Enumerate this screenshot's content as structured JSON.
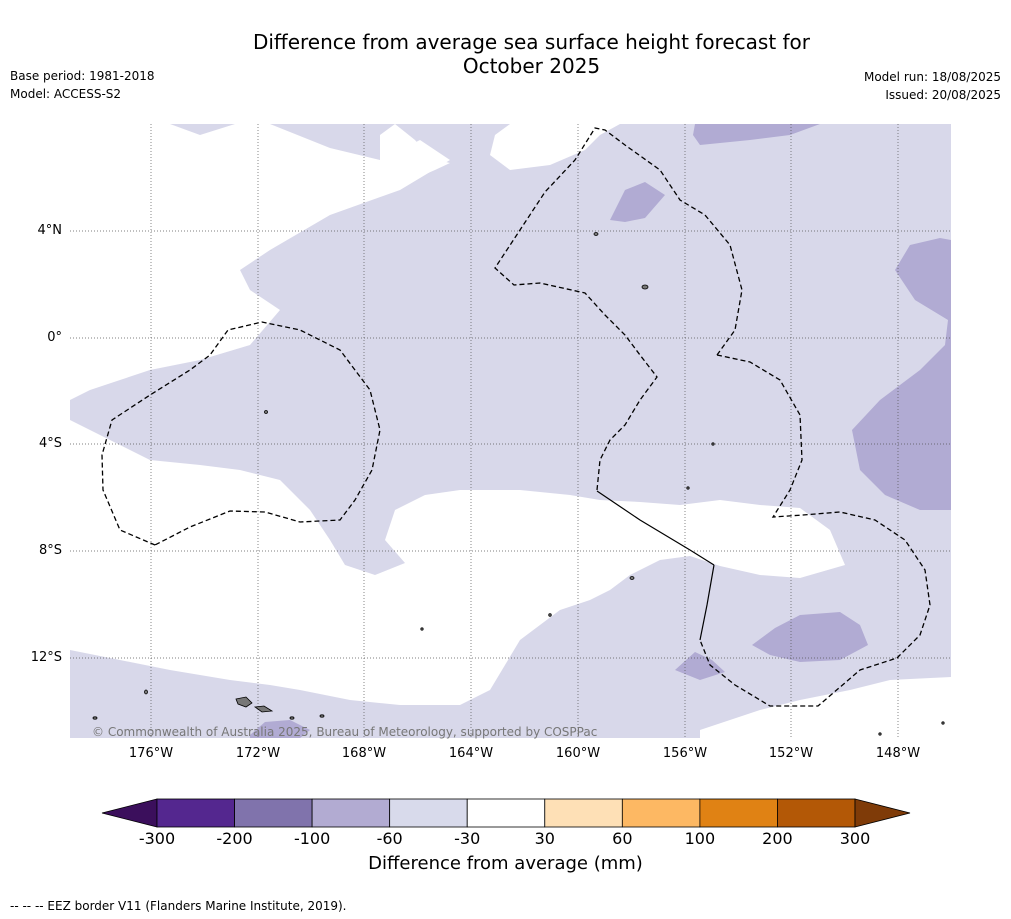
{
  "title": {
    "line1": "Difference from average sea surface height forecast for",
    "line2": "October 2025"
  },
  "meta": {
    "base_period": "Base period: 1981-2018",
    "model": "Model: ACCESS-S2",
    "model_run": "Model run: 18/08/2025",
    "issued": "Issued: 20/08/2025"
  },
  "map": {
    "lat_labels": [
      "4°N",
      "0°",
      "4°S",
      "8°S",
      "12°S"
    ],
    "lon_labels": [
      "176°W",
      "172°W",
      "168°W",
      "164°W",
      "160°W",
      "156°W",
      "152°W",
      "148°W"
    ],
    "copyright": "© Commonwealth of Australia 2025, Bureau of Meteorology, supported by COSPPac",
    "colors": {
      "band_neg30_neg60": "#d8d8ea",
      "band_neg60_neg100": "#b1abd3",
      "neutral": "#ffffff"
    }
  },
  "colorbar": {
    "ticks": [
      "-300",
      "-200",
      "-100",
      "-60",
      "-30",
      "30",
      "60",
      "100",
      "200",
      "300"
    ],
    "colors": [
      "#3b0f5c",
      "#54278f",
      "#8073ac",
      "#b2abd2",
      "#d8daeb",
      "#ffffff",
      "#fee0b6",
      "#fdb863",
      "#e08214",
      "#b35806",
      "#7f3b08"
    ],
    "title": "Difference from average (mm)"
  },
  "footnote": "-- -- -- EEZ border V11 (Flanders Marine Institute, 2019)."
}
